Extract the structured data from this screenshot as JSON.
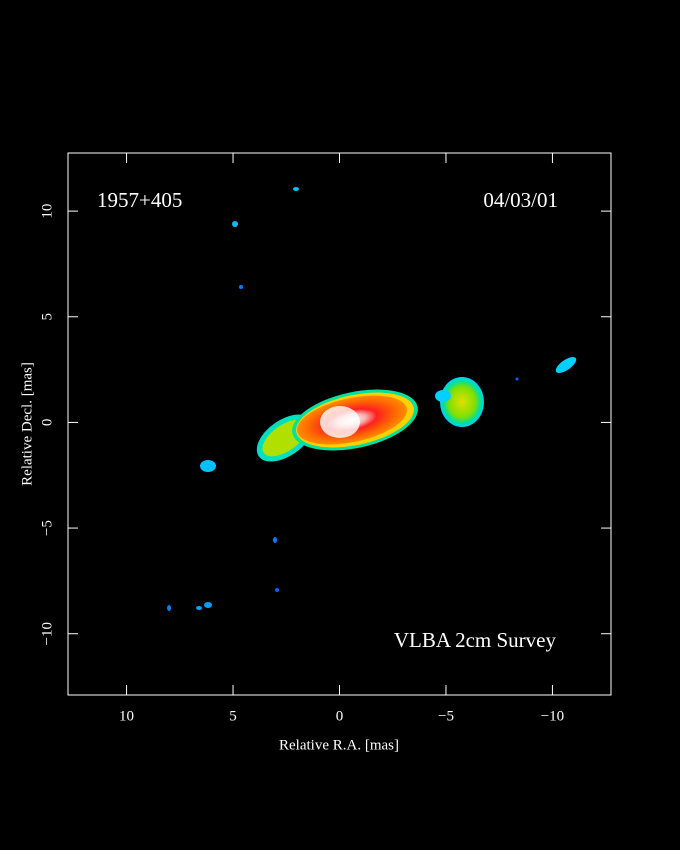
{
  "chart_data": {
    "type": "image",
    "annotations": [
      "1957+405",
      "04/03/01",
      "VLBA 2cm Survey"
    ],
    "xlabel": "Relative R.A. [mas]",
    "ylabel": "Relative Decl. [mas]",
    "xlim": [
      12.75,
      -12.75
    ],
    "ylim": [
      -12.9,
      12.75
    ],
    "xticks": [
      10,
      5,
      0,
      {
        "value": -5,
        "label": "−5"
      },
      {
        "value": -10,
        "label": "−10"
      }
    ],
    "yticks": [
      {
        "value": -10,
        "label": "−10"
      },
      {
        "value": -5,
        "label": "−5"
      },
      0,
      5,
      10
    ]
  }
}
